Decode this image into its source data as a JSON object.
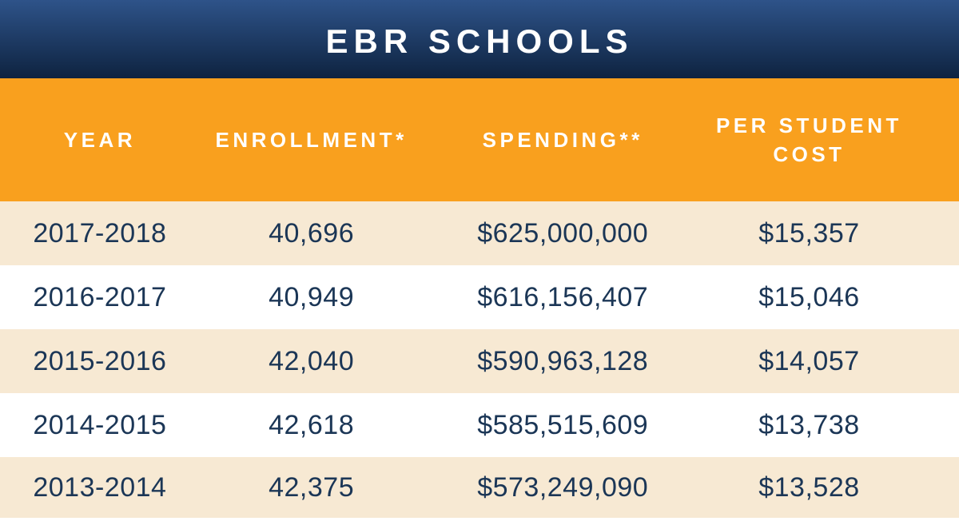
{
  "colors": {
    "header-gradient-top": "#2E5389",
    "header-gradient-bottom": "#0E2340",
    "accent-orange": "#F9A01E",
    "row-cream": "#F7E9D3",
    "row-white": "#FFFFFF",
    "text-navy": "#1B3656",
    "header-text": "#FFFFFF"
  },
  "chart_data": {
    "type": "table",
    "title": "EBR SCHOOLS",
    "columns": [
      "YEAR",
      "ENROLLMENT*",
      "SPENDING**",
      "PER STUDENT COST"
    ],
    "rows": [
      [
        "2017-2018",
        "40,696",
        "$625,000,000",
        "$15,357"
      ],
      [
        "2016-2017",
        "40,949",
        "$616,156,407",
        "$15,046"
      ],
      [
        "2015-2016",
        "42,040",
        "$590,963,128",
        "$14,057"
      ],
      [
        "2014-2015",
        "42,618",
        "$585,515,609",
        "$13,738"
      ],
      [
        "2013-2014",
        "42,375",
        "$573,249,090",
        "$13,528"
      ]
    ],
    "layout": {
      "row_striping": [
        "cream",
        "white",
        "cream",
        "white",
        "cream"
      ],
      "alignment": "center"
    }
  }
}
